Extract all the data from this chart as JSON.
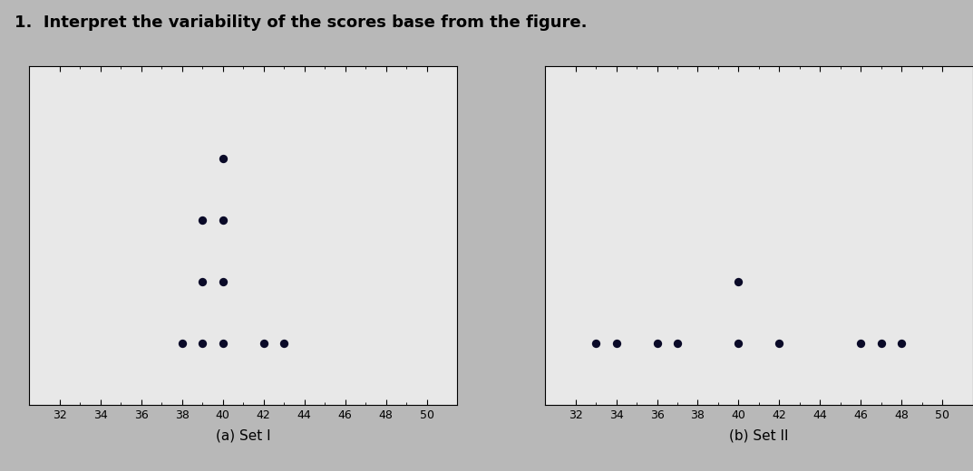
{
  "title": "1.  Interpret the variability of the scores base from the figure.",
  "title_fontsize": 13,
  "background_color": "#b8b8b8",
  "plot_bg_color": "#e8e8e8",
  "dot_color": "#0a0a28",
  "dot_size": 45,
  "set1_label": "(a) Set I",
  "set2_label": "(b) Set II",
  "xlim": [
    30.5,
    51.5
  ],
  "xticks": [
    32,
    34,
    36,
    38,
    40,
    42,
    44,
    46,
    48,
    50
  ],
  "set1_dots": [
    [
      38,
      1
    ],
    [
      39,
      1
    ],
    [
      40,
      1
    ],
    [
      42,
      1
    ],
    [
      43,
      1
    ],
    [
      39,
      2
    ],
    [
      40,
      2
    ],
    [
      39,
      3
    ],
    [
      40,
      3
    ],
    [
      40,
      4
    ]
  ],
  "set2_dots": [
    [
      33,
      1
    ],
    [
      34,
      1
    ],
    [
      36,
      1
    ],
    [
      37,
      1
    ],
    [
      40,
      1
    ],
    [
      42,
      1
    ],
    [
      46,
      1
    ],
    [
      47,
      1
    ],
    [
      48,
      1
    ],
    [
      40,
      2
    ]
  ],
  "ylim": [
    0.0,
    5.5
  ],
  "tick_fontsize": 9,
  "label_fontsize": 11
}
